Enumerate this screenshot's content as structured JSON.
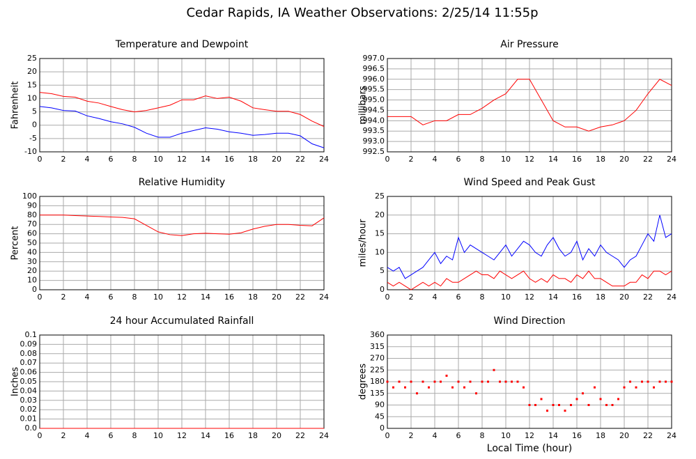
{
  "title": "Cedar Rapids, IA Weather Observations: 2/25/14 11:55p",
  "xlabel": "Local Time (hour)",
  "chart_data": [
    {
      "type": "line",
      "title": "Temperature and Dewpoint",
      "ylabel": "Fahrenheit",
      "x": [
        0,
        1,
        2,
        3,
        4,
        5,
        6,
        7,
        8,
        9,
        10,
        11,
        12,
        13,
        14,
        15,
        16,
        17,
        18,
        19,
        20,
        21,
        22,
        23,
        24
      ],
      "series": [
        {
          "color": "#ff0000",
          "values": [
            12.3,
            11.8,
            10.8,
            10.5,
            9,
            8.3,
            7,
            5.8,
            5,
            5.5,
            6.5,
            7.5,
            9.5,
            9.5,
            11,
            10,
            10.5,
            9,
            6.5,
            5.8,
            5.2,
            5.2,
            4,
            1.5,
            -0.5
          ]
        },
        {
          "color": "#0000ff",
          "values": [
            7,
            6.5,
            5.5,
            5.3,
            3.5,
            2.5,
            1.3,
            0.5,
            -0.8,
            -3,
            -4.5,
            -4.5,
            -3,
            -2,
            -1,
            -1.5,
            -2.5,
            -3,
            -3.8,
            -3.5,
            -3,
            -3,
            -4,
            -7,
            -8.5
          ]
        }
      ],
      "xlim": [
        0,
        24
      ],
      "xticks": [
        0,
        2,
        4,
        6,
        8,
        10,
        12,
        14,
        16,
        18,
        20,
        22,
        24
      ],
      "ylim": [
        -10,
        25
      ],
      "yticks": [
        -10,
        -5,
        0,
        5,
        10,
        15,
        20,
        25
      ],
      "grid": true
    },
    {
      "type": "line",
      "title": "Air Pressure",
      "ylabel": "millibars",
      "x": [
        0,
        1,
        2,
        3,
        4,
        5,
        6,
        7,
        8,
        9,
        10,
        11,
        12,
        13,
        14,
        15,
        16,
        17,
        18,
        19,
        20,
        21,
        22,
        23,
        24
      ],
      "series": [
        {
          "color": "#ff0000",
          "values": [
            994.2,
            994.2,
            994.2,
            993.8,
            994.0,
            994.0,
            994.3,
            994.3,
            994.6,
            995.0,
            995.3,
            996.0,
            996.0,
            995.0,
            994.0,
            993.7,
            993.7,
            993.5,
            993.7,
            993.8,
            994.0,
            994.5,
            995.3,
            996.0,
            995.7
          ]
        }
      ],
      "xlim": [
        0,
        24
      ],
      "xticks": [
        0,
        2,
        4,
        6,
        8,
        10,
        12,
        14,
        16,
        18,
        20,
        22,
        24
      ],
      "ylim": [
        992.5,
        997
      ],
      "yticks": [
        992.5,
        {
          "value": 993,
          "label": "993.0"
        },
        993.5,
        {
          "value": 994,
          "label": "994.0"
        },
        994.5,
        {
          "value": 995,
          "label": "995.0"
        },
        995.5,
        {
          "value": 996,
          "label": "996.0"
        },
        996.5,
        {
          "value": 997,
          "label": "997.0"
        }
      ],
      "grid": true
    },
    {
      "type": "line",
      "title": "Relative Humidity",
      "ylabel": "Percent",
      "x": [
        0,
        1,
        2,
        3,
        4,
        5,
        6,
        7,
        8,
        9,
        10,
        11,
        12,
        13,
        14,
        15,
        16,
        17,
        18,
        19,
        20,
        21,
        22,
        23,
        24
      ],
      "series": [
        {
          "color": "#ff0000",
          "values": [
            80,
            80,
            80,
            79.5,
            79,
            78.5,
            78,
            77.5,
            76,
            69,
            62,
            59,
            58,
            60,
            60.5,
            60,
            59.5,
            61,
            65,
            68,
            70,
            70,
            69,
            68.5,
            77
          ]
        }
      ],
      "xlim": [
        0,
        24
      ],
      "xticks": [
        0,
        2,
        4,
        6,
        8,
        10,
        12,
        14,
        16,
        18,
        20,
        22,
        24
      ],
      "ylim": [
        0,
        100
      ],
      "yticks": [
        0,
        10,
        20,
        30,
        40,
        50,
        60,
        70,
        80,
        90,
        100
      ],
      "grid": true
    },
    {
      "type": "line",
      "title": "Wind Speed and Peak Gust",
      "ylabel": "miles/hour",
      "x": [
        0,
        0.5,
        1,
        1.5,
        2,
        2.5,
        3,
        3.5,
        4,
        4.5,
        5,
        5.5,
        6,
        6.5,
        7,
        7.5,
        8,
        8.5,
        9,
        9.5,
        10,
        10.5,
        11,
        11.5,
        12,
        12.5,
        13,
        13.5,
        14,
        14.5,
        15,
        15.5,
        16,
        16.5,
        17,
        17.5,
        18,
        18.5,
        19,
        19.5,
        20,
        20.5,
        21,
        21.5,
        22,
        22.5,
        23,
        23.5,
        24
      ],
      "series": [
        {
          "color": "#0000ff",
          "values": [
            6,
            5,
            6,
            3,
            4,
            5,
            6,
            8,
            10,
            7,
            9,
            8,
            14,
            10,
            12,
            11,
            10,
            9,
            8,
            10,
            12,
            9,
            11,
            13,
            12,
            10,
            9,
            12,
            14,
            11,
            9,
            10,
            13,
            8,
            11,
            9,
            12,
            10,
            9,
            8,
            6,
            8,
            9,
            12,
            15,
            13,
            20,
            14,
            15
          ]
        },
        {
          "color": "#ff0000",
          "values": [
            2,
            1,
            2,
            1,
            0,
            1,
            2,
            1,
            2,
            1,
            3,
            2,
            2,
            3,
            4,
            5,
            4,
            4,
            3,
            5,
            4,
            3,
            4,
            5,
            3,
            2,
            3,
            2,
            4,
            3,
            3,
            2,
            4,
            3,
            5,
            3,
            3,
            2,
            1,
            1,
            1,
            2,
            2,
            4,
            3,
            5,
            5,
            4,
            5
          ]
        }
      ],
      "xlim": [
        0,
        24
      ],
      "xticks": [
        0,
        2,
        4,
        6,
        8,
        10,
        12,
        14,
        16,
        18,
        20,
        22,
        24
      ],
      "ylim": [
        0,
        25
      ],
      "yticks": [
        0,
        5,
        10,
        15,
        20,
        25
      ],
      "grid": true
    },
    {
      "type": "line",
      "title": "24 hour Accumulated Rainfall",
      "ylabel": "Inches",
      "x": [
        0,
        24
      ],
      "series": [
        {
          "color": "#ff0000",
          "values": [
            0,
            0
          ]
        }
      ],
      "xlim": [
        0,
        24
      ],
      "xticks": [
        0,
        2,
        4,
        6,
        8,
        10,
        12,
        14,
        16,
        18,
        20,
        22,
        24
      ],
      "ylim": [
        0,
        0.1
      ],
      "yticks": [
        {
          "value": 0,
          "label": "0.0"
        },
        0.01,
        0.02,
        0.03,
        0.04,
        0.05,
        0.06,
        0.07,
        0.08,
        0.09,
        0.1
      ],
      "grid": true
    },
    {
      "type": "scatter",
      "title": "Wind Direction",
      "ylabel": "degrees",
      "x": [
        0,
        0.5,
        1,
        1.5,
        2,
        2.5,
        3,
        3.5,
        4,
        4.5,
        5,
        5.5,
        6,
        6.5,
        7,
        7.5,
        8,
        8.5,
        9,
        9.5,
        10,
        10.5,
        11,
        11.5,
        12,
        12.5,
        13,
        13.5,
        14,
        14.5,
        15,
        15.5,
        16,
        16.5,
        17,
        17.5,
        18,
        18.5,
        19,
        19.5,
        20,
        20.5,
        21,
        21.5,
        22,
        22.5,
        23,
        23.5,
        24
      ],
      "series": [
        {
          "color": "#ff0000",
          "values": [
            180,
            158,
            180,
            158,
            180,
            135,
            180,
            158,
            180,
            180,
            203,
            158,
            180,
            158,
            180,
            135,
            180,
            180,
            225,
            180,
            180,
            180,
            180,
            158,
            90,
            90,
            113,
            68,
            90,
            90,
            68,
            90,
            113,
            135,
            90,
            158,
            113,
            90,
            90,
            113,
            158,
            180,
            158,
            180,
            180,
            158,
            180,
            180,
            180
          ]
        }
      ],
      "xlim": [
        0,
        24
      ],
      "xticks": [
        0,
        2,
        4,
        6,
        8,
        10,
        12,
        14,
        16,
        18,
        20,
        22,
        24
      ],
      "ylim": [
        0,
        360
      ],
      "yticks": [
        0,
        45,
        90,
        135,
        180,
        225,
        270,
        315,
        360
      ],
      "grid": true
    }
  ]
}
